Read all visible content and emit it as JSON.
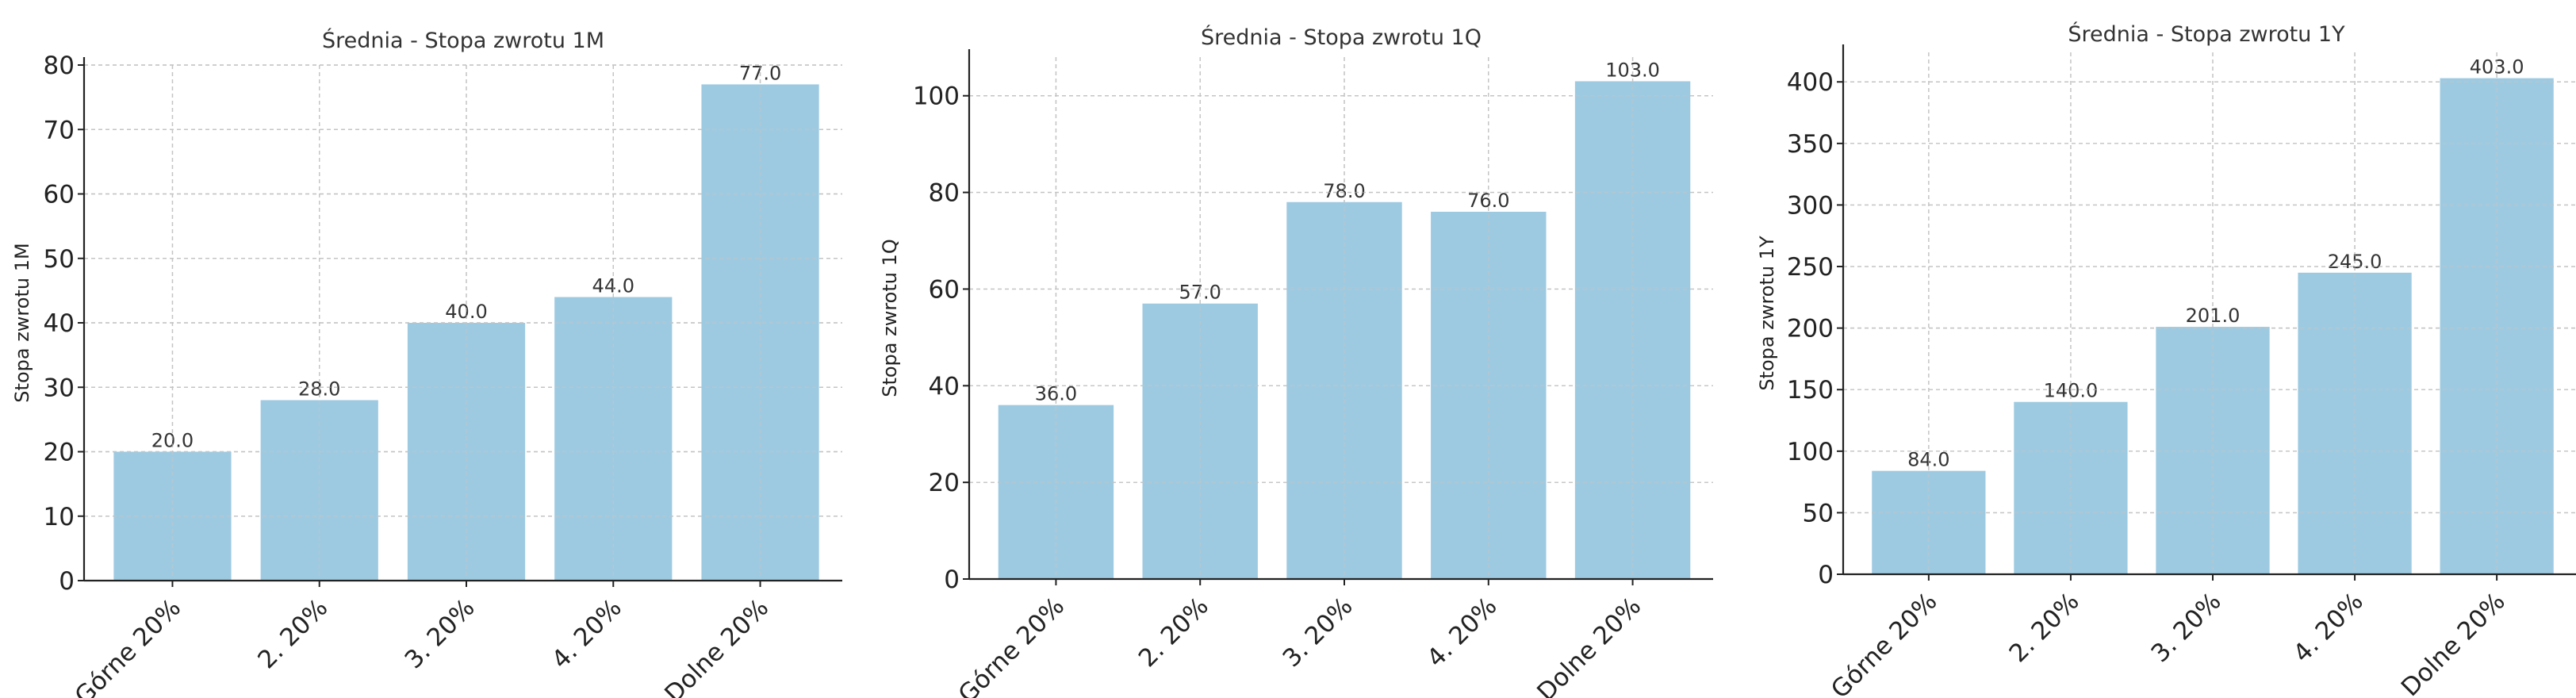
{
  "chart_data": [
    {
      "type": "bar",
      "title": "Średnia - Stopa zwrotu 1M",
      "ylabel": "Stopa zwrotu 1M",
      "xlabel": "",
      "categories": [
        "Górne 20%",
        "2. 20%",
        "3. 20%",
        "4. 20%",
        "Dolne 20%"
      ],
      "values": [
        20.0,
        28.0,
        40.0,
        44.0,
        77.0
      ],
      "value_labels": [
        "20.0",
        "28.0",
        "40.0",
        "44.0",
        "77.0"
      ],
      "ylim": [
        0,
        80
      ],
      "yticks": [
        0,
        10,
        20,
        30,
        40,
        50,
        60,
        70,
        80
      ],
      "grid": true,
      "color": "#9ecae1"
    },
    {
      "type": "bar",
      "title": "Średnia - Stopa zwrotu 1Q",
      "ylabel": "Stopa zwrotu 1Q",
      "xlabel": "",
      "categories": [
        "Górne 20%",
        "2. 20%",
        "3. 20%",
        "4. 20%",
        "Dolne 20%"
      ],
      "values": [
        36.0,
        57.0,
        78.0,
        76.0,
        103.0
      ],
      "value_labels": [
        "36.0",
        "57.0",
        "78.0",
        "76.0",
        "103.0"
      ],
      "ylim": [
        0,
        108
      ],
      "yticks": [
        0,
        20,
        40,
        60,
        80,
        100
      ],
      "grid": true,
      "color": "#9ecae1"
    },
    {
      "type": "bar",
      "title": "Średnia - Stopa zwrotu 1Y",
      "ylabel": "Stopa zwrotu 1Y",
      "xlabel": "",
      "categories": [
        "Górne 20%",
        "2. 20%",
        "3. 20%",
        "4. 20%",
        "Dolne 20%"
      ],
      "values": [
        84.0,
        140.0,
        201.0,
        245.0,
        403.0
      ],
      "value_labels": [
        "84.0",
        "140.0",
        "201.0",
        "245.0",
        "403.0"
      ],
      "ylim": [
        0,
        424
      ],
      "yticks": [
        0,
        50,
        100,
        150,
        200,
        250,
        300,
        350,
        400
      ],
      "grid": true,
      "color": "#9ecae1"
    }
  ]
}
